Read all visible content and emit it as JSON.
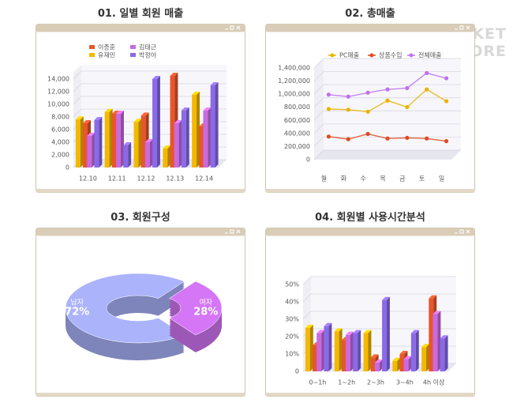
{
  "watermark": [
    "MARKET",
    "MORE"
  ],
  "chart_data": [
    {
      "type": "bar",
      "title": "01. 일별 회원 매출",
      "categories": [
        "12.10",
        "12.11",
        "12.12",
        "12.13",
        "12.14"
      ],
      "series": [
        {
          "name": "유재민",
          "color": "#f5b800",
          "values": [
            7600,
            8800,
            7200,
            3000,
            11500
          ]
        },
        {
          "name": "이종훈",
          "color": "#e8562a",
          "values": [
            7000,
            8500,
            8200,
            14500,
            6500
          ]
        },
        {
          "name": "김태근",
          "color": "#c96ae0",
          "values": [
            5000,
            8500,
            4000,
            7000,
            9000
          ]
        },
        {
          "name": "박정아",
          "color": "#8a6ae8",
          "values": [
            7500,
            3500,
            14000,
            9000,
            13000
          ]
        }
      ],
      "ylim": [
        0,
        15000
      ],
      "yticks": [
        0,
        {
          "value": 2000,
          "label": "2,000"
        },
        {
          "value": 4000,
          "label": "4,000"
        },
        {
          "value": 6000,
          "label": "6,000"
        },
        {
          "value": 8000,
          "label": "8,000"
        },
        {
          "value": 10000,
          "label": "10,000"
        },
        {
          "value": 12000,
          "label": "12,000"
        },
        {
          "value": 14000,
          "label": "14,000"
        }
      ],
      "grid": true,
      "legend": "top"
    },
    {
      "type": "line",
      "title": "02. 총매출",
      "categories": [
        "월",
        "화",
        "수",
        "목",
        "금",
        "토",
        "일"
      ],
      "series": [
        {
          "name": "PC매출",
          "color": "#e8b400",
          "values": [
            700000,
            690000,
            660000,
            830000,
            730000,
            1000000,
            820000
          ]
        },
        {
          "name": "상품수입",
          "color": "#e04a20",
          "values": [
            280000,
            240000,
            320000,
            250000,
            260000,
            250000,
            210000
          ]
        },
        {
          "name": "전체매출",
          "color": "#c070f0",
          "values": [
            920000,
            890000,
            950000,
            1000000,
            1020000,
            1250000,
            1170000
          ]
        }
      ],
      "ylim": [
        0,
        1400000
      ],
      "yticks": [
        0,
        {
          "value": 200000,
          "label": "200,000"
        },
        {
          "value": 400000,
          "label": "400,000"
        },
        {
          "value": 600000,
          "label": "600,000"
        },
        {
          "value": 800000,
          "label": "800,000"
        },
        {
          "value": 1000000,
          "label": "1,000,000"
        },
        {
          "value": 1200000,
          "label": "1,200,000"
        },
        {
          "value": 1400000,
          "label": "1,400,000"
        }
      ],
      "grid": true,
      "legend": "top"
    },
    {
      "type": "pie",
      "title": "03. 회원구성",
      "categories": [
        "남자",
        "여자"
      ],
      "values": [
        72,
        28
      ],
      "value_labels": [
        "72%",
        "28%"
      ],
      "colors": [
        "#9ea6e8",
        "#c46de4"
      ]
    },
    {
      "type": "bar",
      "title": "04. 회원별 사용시간분석",
      "categories": [
        "0~1h",
        "1~2h",
        "2~3h",
        "3~4h",
        "4h 이상"
      ],
      "series": [
        {
          "color": "#f5b800",
          "values": [
            25,
            23,
            22,
            6,
            14
          ]
        },
        {
          "color": "#e8562a",
          "values": [
            15,
            18,
            8,
            10,
            42
          ]
        },
        {
          "color": "#c96ae0",
          "values": [
            22,
            21,
            5,
            7,
            33
          ]
        },
        {
          "color": "#8a6ae8",
          "values": [
            26,
            22,
            41,
            22,
            19
          ]
        }
      ],
      "ylim": [
        0,
        50
      ],
      "yticks": [
        0,
        {
          "value": 10,
          "label": "10%"
        },
        {
          "value": 20,
          "label": "20%"
        },
        {
          "value": 30,
          "label": "30%"
        },
        {
          "value": 40,
          "label": "40%"
        },
        {
          "value": 50,
          "label": "50%"
        }
      ],
      "grid": true
    }
  ]
}
